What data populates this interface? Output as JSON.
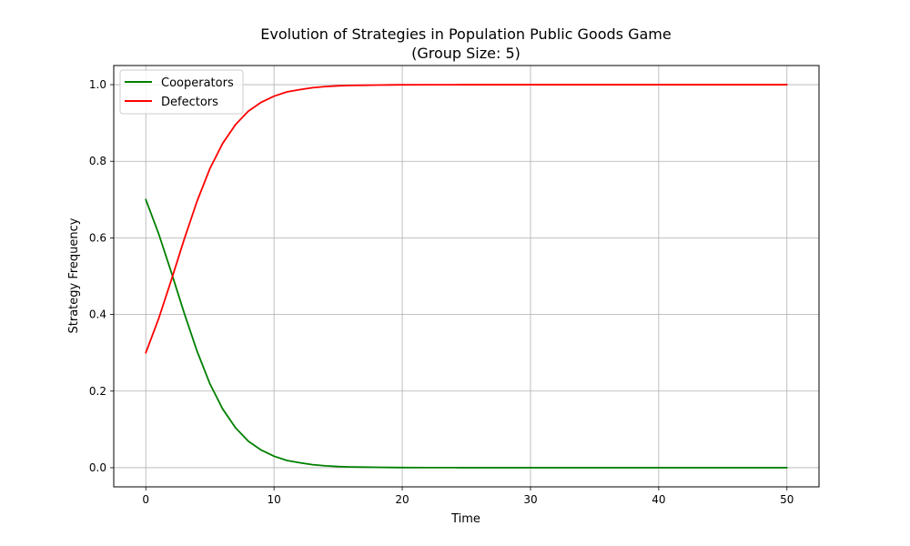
{
  "chart_data": {
    "type": "line",
    "title": "Evolution of Strategies in Population Public Goods Game",
    "subtitle": "(Group Size: 5)",
    "xlabel": "Time",
    "ylabel": "Strategy Frequency",
    "xlim": [
      -2.5,
      52.5
    ],
    "ylim": [
      -0.05,
      1.05
    ],
    "x_ticks": [
      0,
      10,
      20,
      30,
      40,
      50
    ],
    "y_ticks": [
      0.0,
      0.2,
      0.4,
      0.6,
      0.8,
      1.0
    ],
    "x_tick_labels": [
      "0",
      "10",
      "20",
      "30",
      "40",
      "50"
    ],
    "y_tick_labels": [
      "0.0",
      "0.2",
      "0.4",
      "0.6",
      "0.8",
      "1.0"
    ],
    "grid": true,
    "legend_position": "top-left",
    "x": [
      0,
      1,
      2,
      3,
      4,
      5,
      6,
      7,
      8,
      9,
      10,
      11,
      12,
      13,
      14,
      15,
      16,
      17,
      18,
      19,
      20,
      22,
      24,
      26,
      28,
      30,
      35,
      40,
      45,
      50
    ],
    "series": [
      {
        "name": "Cooperators",
        "color": "#008000",
        "values": [
          0.7,
          0.611,
          0.509,
          0.403,
          0.304,
          0.219,
          0.153,
          0.104,
          0.069,
          0.046,
          0.03,
          0.019,
          0.013,
          0.008,
          0.005,
          0.003,
          0.002,
          0.0015,
          0.001,
          0.0006,
          0.0004,
          0.0002,
          0.0001,
          0.0,
          0.0,
          0.0,
          0.0,
          0.0,
          0.0,
          0.0
        ]
      },
      {
        "name": "Defectors",
        "color": "#ff0000",
        "values": [
          0.3,
          0.389,
          0.491,
          0.597,
          0.696,
          0.781,
          0.847,
          0.896,
          0.931,
          0.954,
          0.97,
          0.981,
          0.987,
          0.992,
          0.995,
          0.997,
          0.998,
          0.9985,
          0.999,
          0.9994,
          0.9996,
          0.9998,
          0.9999,
          1.0,
          1.0,
          1.0,
          1.0,
          1.0,
          1.0,
          1.0
        ]
      }
    ]
  }
}
